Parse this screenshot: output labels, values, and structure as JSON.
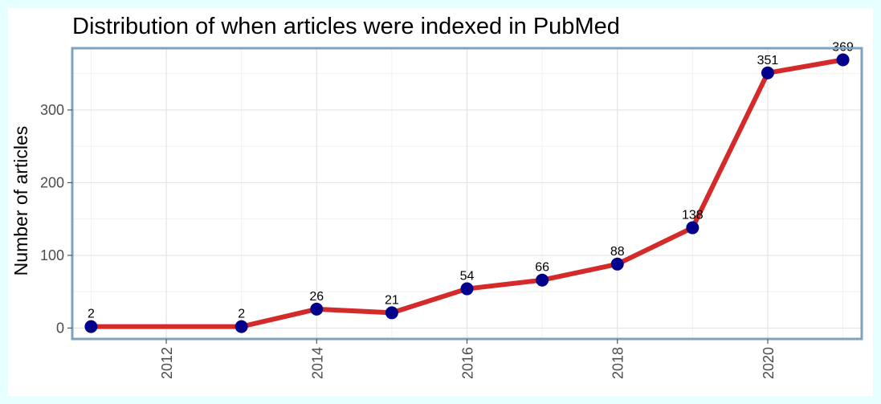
{
  "chart_data": {
    "type": "line",
    "title": "Distribution of when articles were indexed in PubMed",
    "xlabel": "",
    "ylabel": "Number of articles",
    "x": [
      2011,
      2013,
      2014,
      2015,
      2016,
      2017,
      2018,
      2019,
      2020,
      2021
    ],
    "values": [
      2,
      2,
      26,
      21,
      54,
      66,
      88,
      138,
      351,
      369
    ],
    "data_labels": [
      "2",
      "2",
      "26",
      "21",
      "54",
      "66",
      "88",
      "138",
      "351",
      "369"
    ],
    "xlim": [
      2010.75,
      2021.25
    ],
    "ylim": [
      -15,
      385
    ],
    "x_ticks": [
      2012,
      2014,
      2016,
      2018,
      2020
    ],
    "x_tick_labels": [
      "2012",
      "2014",
      "2016",
      "2018",
      "2020"
    ],
    "y_ticks": [
      0,
      100,
      200,
      300
    ],
    "y_tick_labels": [
      "0",
      "100",
      "200",
      "300"
    ],
    "grid": true,
    "colors": {
      "line": "#d42a2a",
      "marker": "#00008b",
      "panel_border": "#7fa3bf",
      "grid": "#e4e4e4",
      "page_background": "#e6ffff"
    }
  }
}
